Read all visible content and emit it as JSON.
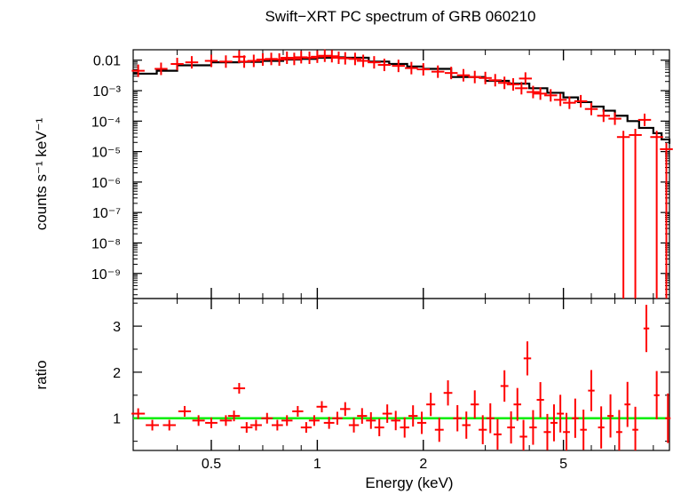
{
  "chart_data": [
    {
      "type": "scatter",
      "title": "Swift−XRT PC spectrum of GRB 060210",
      "xlabel": "",
      "ylabel": "counts s⁻¹ keV⁻¹",
      "xscale": "log",
      "yscale": "log",
      "xlim": [
        0.3,
        10
      ],
      "ylim": [
        1.5e-10,
        0.022
      ],
      "ytick_labels": [
        "0.01",
        "10⁻³",
        "10⁻⁴",
        "10⁻⁵",
        "10⁻⁶",
        "10⁻⁷",
        "10⁻⁸",
        "10⁻⁹"
      ],
      "ytick_values": [
        0.01,
        0.001,
        0.0001,
        1e-05,
        1e-06,
        1e-07,
        1e-08,
        1e-09
      ],
      "series": [
        {
          "kind": "data",
          "color": "#ff0000",
          "points": [
            [
              0.31,
              0.0045
            ],
            [
              0.36,
              0.0052
            ],
            [
              0.4,
              0.0075
            ],
            [
              0.44,
              0.0085
            ],
            [
              0.5,
              0.0095
            ],
            [
              0.55,
              0.009
            ],
            [
              0.6,
              0.013
            ],
            [
              0.62,
              0.009
            ],
            [
              0.66,
              0.0095
            ],
            [
              0.7,
              0.0105
            ],
            [
              0.74,
              0.011
            ],
            [
              0.78,
              0.0105
            ],
            [
              0.82,
              0.012
            ],
            [
              0.86,
              0.011
            ],
            [
              0.9,
              0.0125
            ],
            [
              0.95,
              0.012
            ],
            [
              1.0,
              0.013
            ],
            [
              1.05,
              0.014
            ],
            [
              1.1,
              0.0135
            ],
            [
              1.15,
              0.012
            ],
            [
              1.2,
              0.0115
            ],
            [
              1.28,
              0.011
            ],
            [
              1.35,
              0.0095
            ],
            [
              1.45,
              0.0085
            ],
            [
              1.55,
              0.007
            ],
            [
              1.7,
              0.0065
            ],
            [
              1.85,
              0.0055
            ],
            [
              2.0,
              0.005
            ],
            [
              2.2,
              0.0042
            ],
            [
              2.4,
              0.0038
            ],
            [
              2.6,
              0.0032
            ],
            [
              2.8,
              0.0028
            ],
            [
              3.0,
              0.0026
            ],
            [
              3.2,
              0.0022
            ],
            [
              3.4,
              0.0018
            ],
            [
              3.6,
              0.0016
            ],
            [
              3.8,
              0.0012
            ],
            [
              3.9,
              0.0025
            ],
            [
              4.1,
              0.0009
            ],
            [
              4.3,
              0.0008
            ],
            [
              4.6,
              0.0007
            ],
            [
              4.9,
              0.0005
            ],
            [
              5.2,
              0.0004
            ],
            [
              5.6,
              0.00045
            ],
            [
              6.0,
              0.00025
            ],
            [
              6.5,
              0.00015
            ],
            [
              7.0,
              0.00012
            ],
            [
              7.4,
              3e-05
            ],
            [
              8.0,
              3.5e-05
            ],
            [
              8.5,
              0.00011
            ],
            [
              9.2,
              3e-05
            ],
            [
              9.8,
              1.2e-05
            ]
          ]
        },
        {
          "kind": "model",
          "color": "#000000",
          "points": [
            [
              0.3,
              0.0036
            ],
            [
              0.35,
              0.0045
            ],
            [
              0.4,
              0.0068
            ],
            [
              0.5,
              0.0085
            ],
            [
              0.6,
              0.0088
            ],
            [
              0.7,
              0.0095
            ],
            [
              0.8,
              0.0105
            ],
            [
              0.9,
              0.011
            ],
            [
              1.0,
              0.012
            ],
            [
              1.1,
              0.0125
            ],
            [
              1.2,
              0.012
            ],
            [
              1.4,
              0.009
            ],
            [
              1.6,
              0.0075
            ],
            [
              1.8,
              0.0062
            ],
            [
              2.0,
              0.0052
            ],
            [
              2.4,
              0.0028
            ],
            [
              3.0,
              0.0021
            ],
            [
              3.5,
              0.0017
            ],
            [
              4.0,
              0.0012
            ],
            [
              4.5,
              0.00085
            ],
            [
              5.0,
              0.0006
            ],
            [
              5.5,
              0.00042
            ],
            [
              6.0,
              0.0003
            ],
            [
              6.5,
              0.00022
            ],
            [
              7.0,
              0.00015
            ],
            [
              7.6,
              0.0001
            ],
            [
              8.2,
              6e-05
            ],
            [
              9.0,
              4e-05
            ],
            [
              9.5,
              2.5e-05
            ],
            [
              10.0,
              1.8e-05
            ]
          ]
        }
      ]
    },
    {
      "type": "scatter",
      "title": "",
      "xlabel": "Energy (keV)",
      "ylabel": "ratio",
      "xscale": "log",
      "yscale": "linear",
      "xlim": [
        0.3,
        10
      ],
      "ylim": [
        0.3,
        3.6
      ],
      "xtick_labels": [
        "0.5",
        "1",
        "2",
        "5"
      ],
      "xtick_values": [
        0.5,
        1,
        2,
        5
      ],
      "ytick_labels": [
        "1",
        "2",
        "3"
      ],
      "ytick_values": [
        1,
        2,
        3
      ],
      "reference_line": {
        "y": 1,
        "color": "#00ee00"
      },
      "series": [
        {
          "kind": "data",
          "color": "#ff0000",
          "points": [
            [
              0.31,
              1.1
            ],
            [
              0.34,
              0.85
            ],
            [
              0.38,
              0.85
            ],
            [
              0.42,
              1.15
            ],
            [
              0.46,
              0.95
            ],
            [
              0.5,
              0.9
            ],
            [
              0.55,
              0.95
            ],
            [
              0.58,
              1.05
            ],
            [
              0.6,
              1.65
            ],
            [
              0.63,
              0.8
            ],
            [
              0.67,
              0.85
            ],
            [
              0.72,
              1.0
            ],
            [
              0.77,
              0.85
            ],
            [
              0.82,
              0.95
            ],
            [
              0.88,
              1.15
            ],
            [
              0.93,
              0.8
            ],
            [
              0.98,
              0.95
            ],
            [
              1.03,
              1.25
            ],
            [
              1.08,
              0.9
            ],
            [
              1.14,
              1.0
            ],
            [
              1.2,
              1.2
            ],
            [
              1.27,
              0.85
            ],
            [
              1.34,
              1.05
            ],
            [
              1.42,
              0.95
            ],
            [
              1.5,
              0.8
            ],
            [
              1.58,
              1.1
            ],
            [
              1.67,
              0.95
            ],
            [
              1.77,
              0.8
            ],
            [
              1.87,
              1.05
            ],
            [
              1.98,
              0.9
            ],
            [
              2.1,
              1.3
            ],
            [
              2.22,
              0.75
            ],
            [
              2.35,
              1.55
            ],
            [
              2.5,
              1.0
            ],
            [
              2.65,
              0.85
            ],
            [
              2.8,
              1.3
            ],
            [
              2.95,
              0.75
            ],
            [
              3.1,
              1.0
            ],
            [
              3.25,
              0.65
            ],
            [
              3.4,
              1.7
            ],
            [
              3.55,
              0.8
            ],
            [
              3.7,
              1.3
            ],
            [
              3.85,
              0.6
            ],
            [
              3.95,
              2.3
            ],
            [
              4.1,
              0.8
            ],
            [
              4.3,
              1.4
            ],
            [
              4.5,
              0.7
            ],
            [
              4.7,
              0.9
            ],
            [
              4.9,
              1.1
            ],
            [
              5.1,
              0.7
            ],
            [
              5.4,
              1.0
            ],
            [
              5.7,
              0.75
            ],
            [
              6.0,
              1.6
            ],
            [
              6.4,
              0.8
            ],
            [
              6.8,
              1.05
            ],
            [
              7.2,
              0.7
            ],
            [
              7.6,
              1.3
            ],
            [
              8.0,
              0.75
            ],
            [
              8.6,
              2.95
            ],
            [
              9.2,
              1.5
            ],
            [
              9.9,
              1.0
            ]
          ]
        }
      ]
    }
  ]
}
